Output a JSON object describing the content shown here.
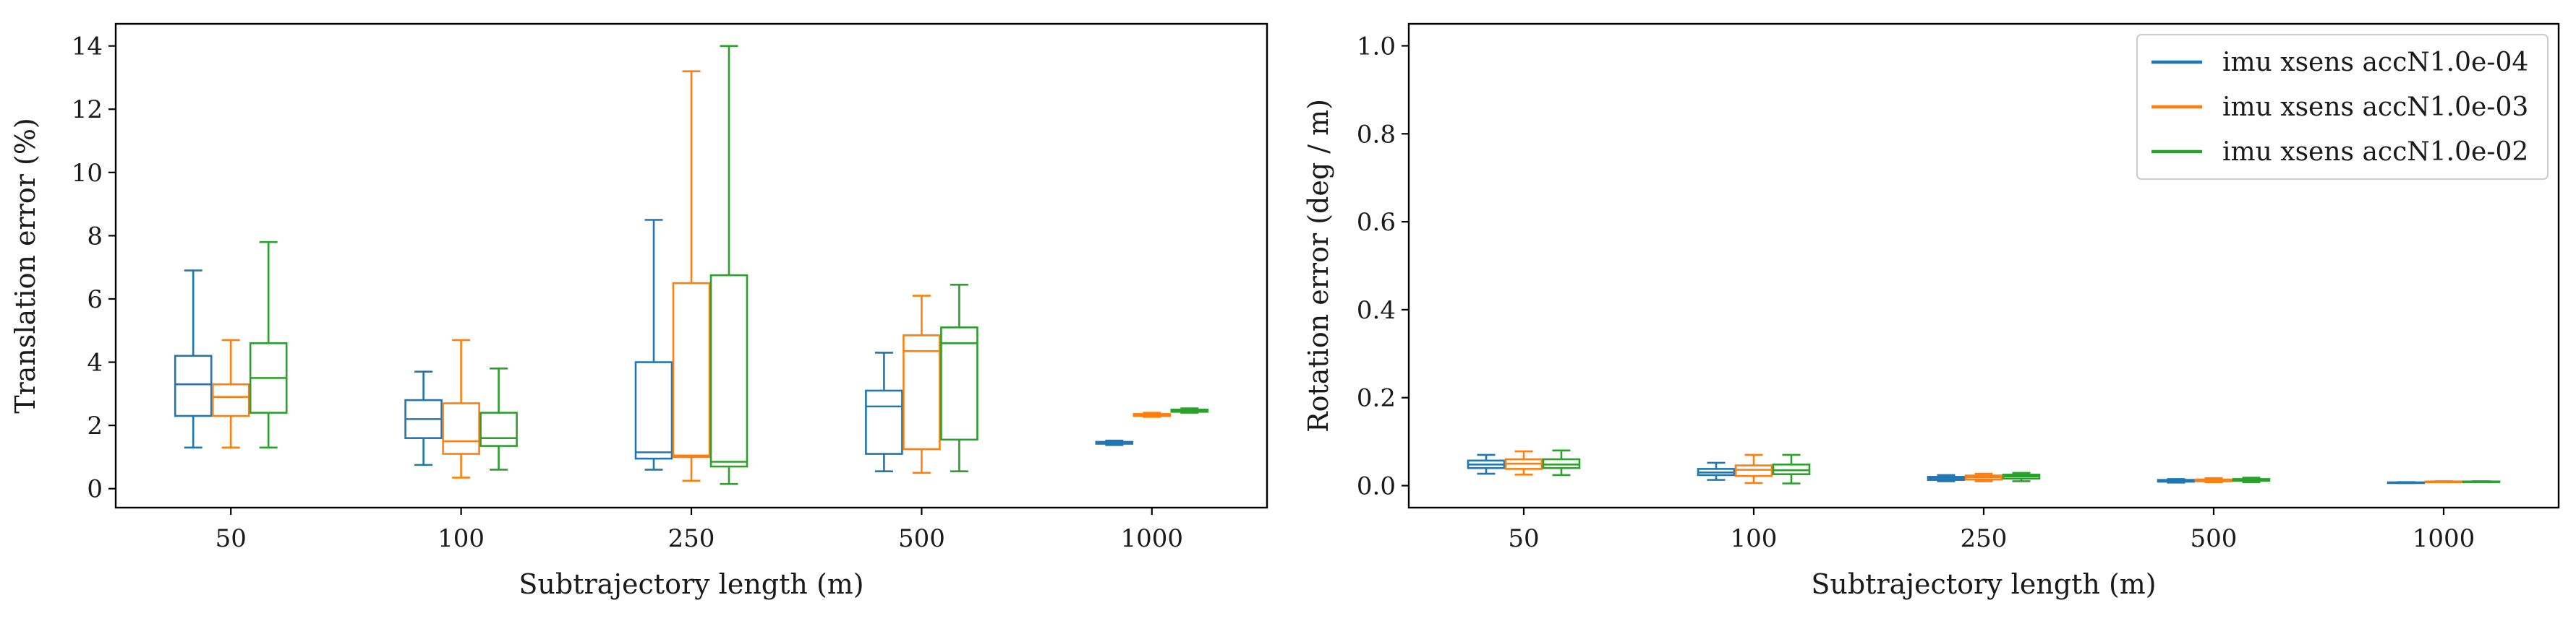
{
  "chart_data": [
    {
      "type": "box",
      "xlabel": "Subtrajectory length (m)",
      "ylabel": "Translation error (%)",
      "categories": [
        "50",
        "100",
        "250",
        "500",
        "1000"
      ],
      "ylim": [
        -0.6,
        14.7
      ],
      "yticks": [
        "0",
        "2",
        "4",
        "6",
        "8",
        "10",
        "12",
        "14"
      ],
      "grid": false,
      "series": [
        {
          "name": "imu xsens accN1.0e-04",
          "color": "#1f77b4",
          "boxes": [
            {
              "whisker_low": 1.3,
              "q1": 2.3,
              "median": 3.3,
              "q3": 4.2,
              "whisker_high": 6.9
            },
            {
              "whisker_low": 0.75,
              "q1": 1.6,
              "median": 2.2,
              "q3": 2.8,
              "whisker_high": 3.7
            },
            {
              "whisker_low": 0.6,
              "q1": 0.95,
              "median": 1.15,
              "q3": 4.0,
              "whisker_high": 8.5
            },
            {
              "whisker_low": 0.55,
              "q1": 1.1,
              "median": 2.6,
              "q3": 3.1,
              "whisker_high": 4.3
            },
            {
              "whisker_low": 1.38,
              "q1": 1.42,
              "median": 1.45,
              "q3": 1.48,
              "whisker_high": 1.52
            }
          ]
        },
        {
          "name": "imu xsens accN1.0e-03",
          "color": "#ff7f0e",
          "boxes": [
            {
              "whisker_low": 1.3,
              "q1": 2.3,
              "median": 2.9,
              "q3": 3.3,
              "whisker_high": 4.7
            },
            {
              "whisker_low": 0.35,
              "q1": 1.1,
              "median": 1.5,
              "q3": 2.7,
              "whisker_high": 4.7
            },
            {
              "whisker_low": 0.25,
              "q1": 1.0,
              "median": 1.05,
              "q3": 6.5,
              "whisker_high": 13.2
            },
            {
              "whisker_low": 0.5,
              "q1": 1.25,
              "median": 4.35,
              "q3": 4.85,
              "whisker_high": 6.1
            },
            {
              "whisker_low": 2.27,
              "q1": 2.3,
              "median": 2.33,
              "q3": 2.36,
              "whisker_high": 2.4
            }
          ]
        },
        {
          "name": "imu xsens accN1.0e-02",
          "color": "#2ca02c",
          "boxes": [
            {
              "whisker_low": 1.3,
              "q1": 2.4,
              "median": 3.5,
              "q3": 4.6,
              "whisker_high": 7.8
            },
            {
              "whisker_low": 0.6,
              "q1": 1.35,
              "median": 1.6,
              "q3": 2.4,
              "whisker_high": 3.8
            },
            {
              "whisker_low": 0.15,
              "q1": 0.7,
              "median": 0.85,
              "q3": 6.75,
              "whisker_high": 14.0
            },
            {
              "whisker_low": 0.55,
              "q1": 1.55,
              "median": 4.6,
              "q3": 5.1,
              "whisker_high": 6.45
            },
            {
              "whisker_low": 2.4,
              "q1": 2.43,
              "median": 2.47,
              "q3": 2.5,
              "whisker_high": 2.54
            }
          ]
        }
      ]
    },
    {
      "type": "box",
      "xlabel": "Subtrajectory length (m)",
      "ylabel": "Rotation error (deg / m)",
      "categories": [
        "50",
        "100",
        "250",
        "500",
        "1000"
      ],
      "ylim": [
        -0.05,
        1.05
      ],
      "yticks": [
        "0.0",
        "0.2",
        "0.4",
        "0.6",
        "0.8",
        "1.0"
      ],
      "grid": false,
      "legend": "top-right",
      "series": [
        {
          "name": "imu xsens accN1.0e-04",
          "color": "#1f77b4",
          "boxes": [
            {
              "whisker_low": 0.027,
              "q1": 0.04,
              "median": 0.048,
              "q3": 0.057,
              "whisker_high": 0.07
            },
            {
              "whisker_low": 0.013,
              "q1": 0.024,
              "median": 0.03,
              "q3": 0.038,
              "whisker_high": 0.052
            },
            {
              "whisker_low": 0.01,
              "q1": 0.013,
              "median": 0.016,
              "q3": 0.02,
              "whisker_high": 0.024
            },
            {
              "whisker_low": 0.007,
              "q1": 0.009,
              "median": 0.011,
              "q3": 0.013,
              "whisker_high": 0.015
            },
            {
              "whisker_low": 0.006,
              "q1": 0.0065,
              "median": 0.007,
              "q3": 0.0075,
              "whisker_high": 0.008
            }
          ]
        },
        {
          "name": "imu xsens accN1.0e-03",
          "color": "#ff7f0e",
          "boxes": [
            {
              "whisker_low": 0.025,
              "q1": 0.038,
              "median": 0.05,
              "q3": 0.06,
              "whisker_high": 0.078
            },
            {
              "whisker_low": 0.006,
              "q1": 0.022,
              "median": 0.036,
              "q3": 0.046,
              "whisker_high": 0.07
            },
            {
              "whisker_low": 0.01,
              "q1": 0.014,
              "median": 0.019,
              "q3": 0.023,
              "whisker_high": 0.027
            },
            {
              "whisker_low": 0.008,
              "q1": 0.01,
              "median": 0.012,
              "q3": 0.014,
              "whisker_high": 0.017
            },
            {
              "whisker_low": 0.008,
              "q1": 0.0085,
              "median": 0.009,
              "q3": 0.0095,
              "whisker_high": 0.01
            }
          ]
        },
        {
          "name": "imu xsens accN1.0e-02",
          "color": "#2ca02c",
          "boxes": [
            {
              "whisker_low": 0.024,
              "q1": 0.04,
              "median": 0.048,
              "q3": 0.06,
              "whisker_high": 0.08
            },
            {
              "whisker_low": 0.005,
              "q1": 0.026,
              "median": 0.035,
              "q3": 0.048,
              "whisker_high": 0.07
            },
            {
              "whisker_low": 0.01,
              "q1": 0.016,
              "median": 0.021,
              "q3": 0.025,
              "whisker_high": 0.029
            },
            {
              "whisker_low": 0.008,
              "q1": 0.011,
              "median": 0.013,
              "q3": 0.015,
              "whisker_high": 0.018
            },
            {
              "whisker_low": 0.008,
              "q1": 0.0085,
              "median": 0.009,
              "q3": 0.0095,
              "whisker_high": 0.01
            }
          ]
        }
      ]
    }
  ]
}
